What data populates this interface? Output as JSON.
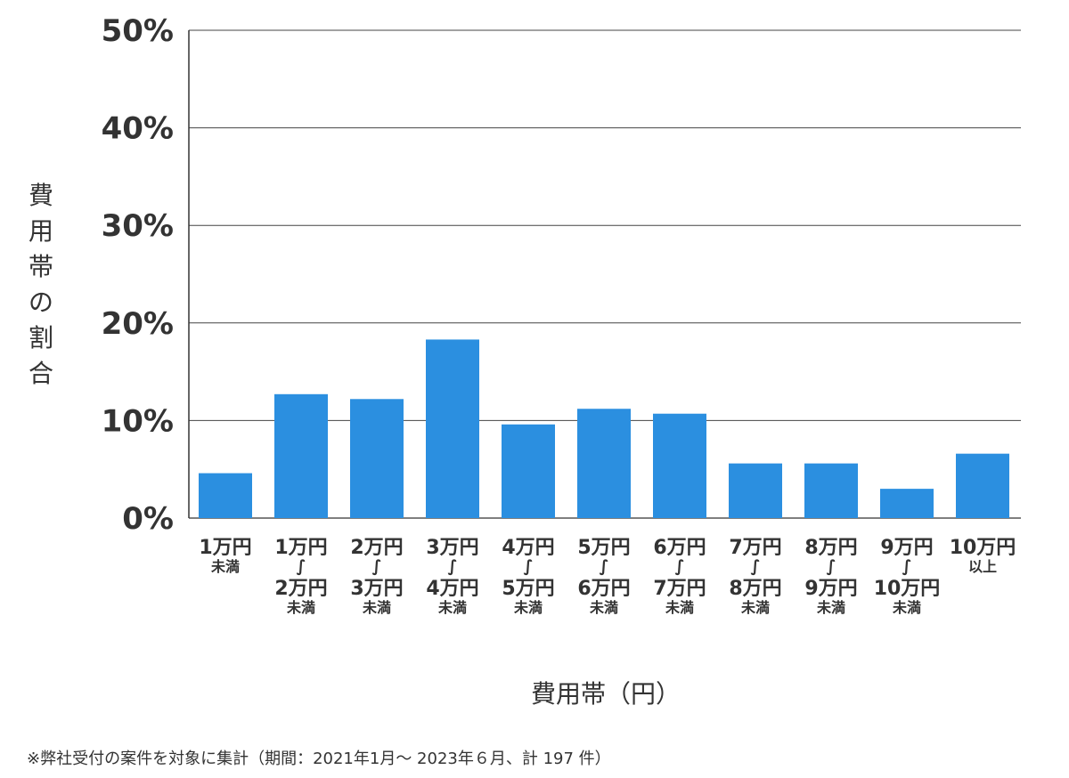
{
  "chart_data": {
    "type": "bar",
    "ylabel": "費用帯の割合",
    "xlabel": "費用帯（円）",
    "ylim": [
      0,
      50
    ],
    "yticks": [
      0,
      10,
      20,
      30,
      40,
      50
    ],
    "ytick_labels": [
      "0%",
      "10%",
      "20%",
      "30%",
      "40%",
      "50%"
    ],
    "grid": true,
    "bar_color": "#2b8fe0",
    "categories": [
      [
        "1万円",
        "未満"
      ],
      [
        "1万円",
        "∫",
        "2万円",
        "未満"
      ],
      [
        "2万円",
        "∫",
        "3万円",
        "未満"
      ],
      [
        "3万円",
        "∫",
        "4万円",
        "未満"
      ],
      [
        "4万円",
        "∫",
        "5万円",
        "未満"
      ],
      [
        "5万円",
        "∫",
        "6万円",
        "未満"
      ],
      [
        "6万円",
        "∫",
        "7万円",
        "未満"
      ],
      [
        "7万円",
        "∫",
        "8万円",
        "未満"
      ],
      [
        "8万円",
        "∫",
        "9万円",
        "未満"
      ],
      [
        "9万円",
        "∫",
        "10万円",
        "未満"
      ],
      [
        "10万円",
        "以上"
      ]
    ],
    "values": [
      4.6,
      12.7,
      12.2,
      18.3,
      9.6,
      11.2,
      10.7,
      5.6,
      5.6,
      3.0,
      6.6
    ]
  },
  "footnote": "※弊社受付の案件を対象に集計（期間：2021年1月～ 2023年６月、計 197 件）"
}
